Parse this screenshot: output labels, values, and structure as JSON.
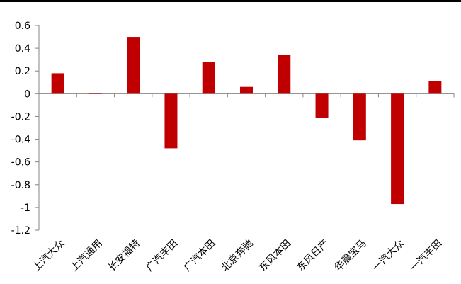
{
  "chart_data": {
    "type": "bar",
    "categories": [
      "上汽大众",
      "上汽通用",
      "长安福特",
      "广汽丰田",
      "广汽本田",
      "北京奔驰",
      "东风本田",
      "东风日产",
      "华晨宝马",
      "一汽大众",
      "一汽丰田"
    ],
    "values": [
      0.18,
      0.005,
      0.5,
      -0.48,
      0.28,
      0.06,
      0.34,
      -0.21,
      -0.41,
      -0.97,
      0.11
    ],
    "title": "",
    "xlabel": "",
    "ylabel": "",
    "ylim": [
      -1.2,
      0.6
    ],
    "yticks": [
      "0.6",
      "0.4",
      "0.2",
      "0",
      "-0.2",
      "-0.4",
      "-0.6",
      "-0.8",
      "-1",
      "-1.2"
    ],
    "bar_color": "#C00000",
    "grid": false,
    "legend": "none"
  }
}
